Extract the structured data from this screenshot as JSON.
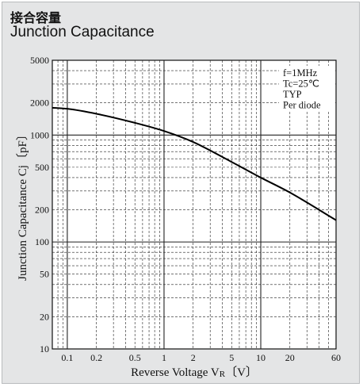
{
  "header": {
    "title_jp": "接合容量",
    "title_en": "Junction Capacitance"
  },
  "chart_data": {
    "type": "line",
    "title": "Junction Capacitance",
    "xlabel": "Reverse Voltage  V R 〔V〕",
    "xlabel_main": "Reverse Voltage  V",
    "xlabel_sub": "R",
    "xlabel_unit": "〔V〕",
    "ylabel": "Junction Capacitance  Cj〔pF〕",
    "xscale": "log",
    "yscale": "log",
    "xlim": [
      0.07,
      60
    ],
    "ylim": [
      10,
      5000
    ],
    "grid": true,
    "x_ticks": [
      0.1,
      0.2,
      0.5,
      1,
      2,
      5,
      10,
      20,
      60
    ],
    "x_tick_labels": [
      "0.1",
      "0.2",
      "0.5",
      "1",
      "2",
      "5",
      "10",
      "20",
      "60"
    ],
    "y_ticks": [
      10,
      20,
      50,
      100,
      200,
      500,
      1000,
      2000,
      5000
    ],
    "y_tick_labels": [
      "10",
      "20",
      "50",
      "100",
      "200",
      "500",
      "1000",
      "2000",
      "5000"
    ],
    "annotations": [
      "f=1MHz",
      "Tc=25℃",
      "TYP",
      "Per diode"
    ],
    "series": [
      {
        "x": [
          0.07,
          0.1,
          0.2,
          0.5,
          1,
          2,
          5,
          10,
          20,
          60
        ],
        "y": [
          1800,
          1760,
          1580,
          1300,
          1090,
          860,
          560,
          400,
          290,
          160
        ]
      }
    ]
  },
  "colors": {
    "panel_bg": "#e4e5e6",
    "plot_bg": "#ffffff",
    "line": "#000000"
  }
}
